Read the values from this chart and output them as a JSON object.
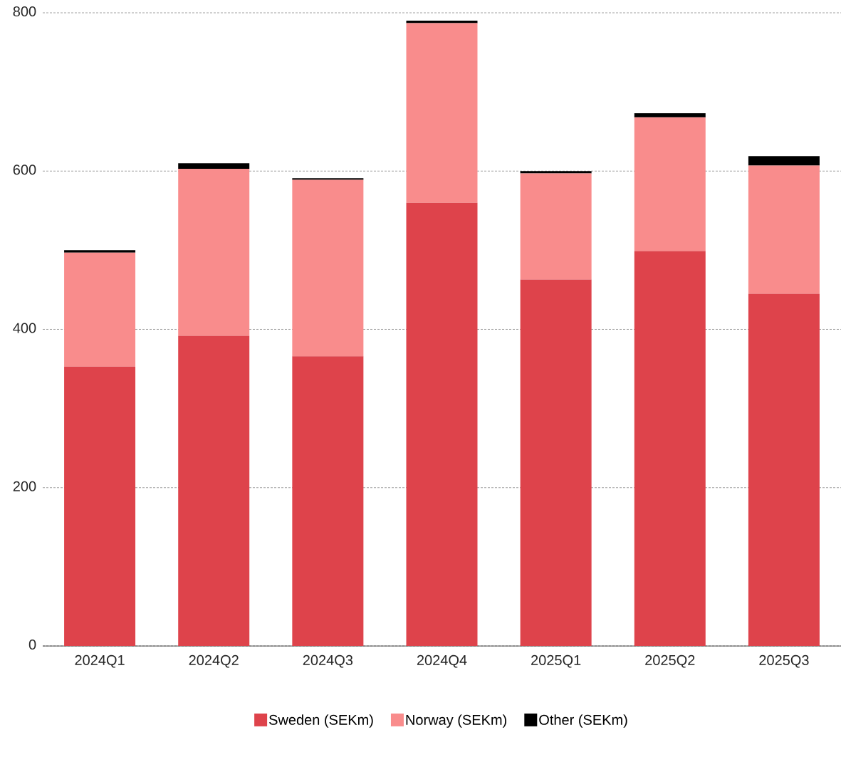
{
  "chart_data": {
    "type": "bar",
    "stacked": true,
    "categories": [
      "2024Q1",
      "2024Q2",
      "2024Q3",
      "2024Q4",
      "2025Q1",
      "2025Q2",
      "2025Q3"
    ],
    "series": [
      {
        "name": "Sweden (SEKm)",
        "color": "#de434b",
        "values": [
          353,
          392,
          366,
          560,
          463,
          499,
          445
        ]
      },
      {
        "name": "Norway (SEKm)",
        "color": "#f98c8c",
        "values": [
          144,
          211,
          223,
          227,
          134,
          169,
          162
        ]
      },
      {
        "name": "Other (SEKm)",
        "color": "#000000",
        "values": [
          3,
          7,
          2,
          3,
          3,
          5,
          12
        ]
      }
    ],
    "ylim": [
      0,
      800
    ],
    "yticks": [
      0,
      200,
      400,
      600,
      800
    ],
    "grid": "y",
    "legend": "bottom"
  }
}
